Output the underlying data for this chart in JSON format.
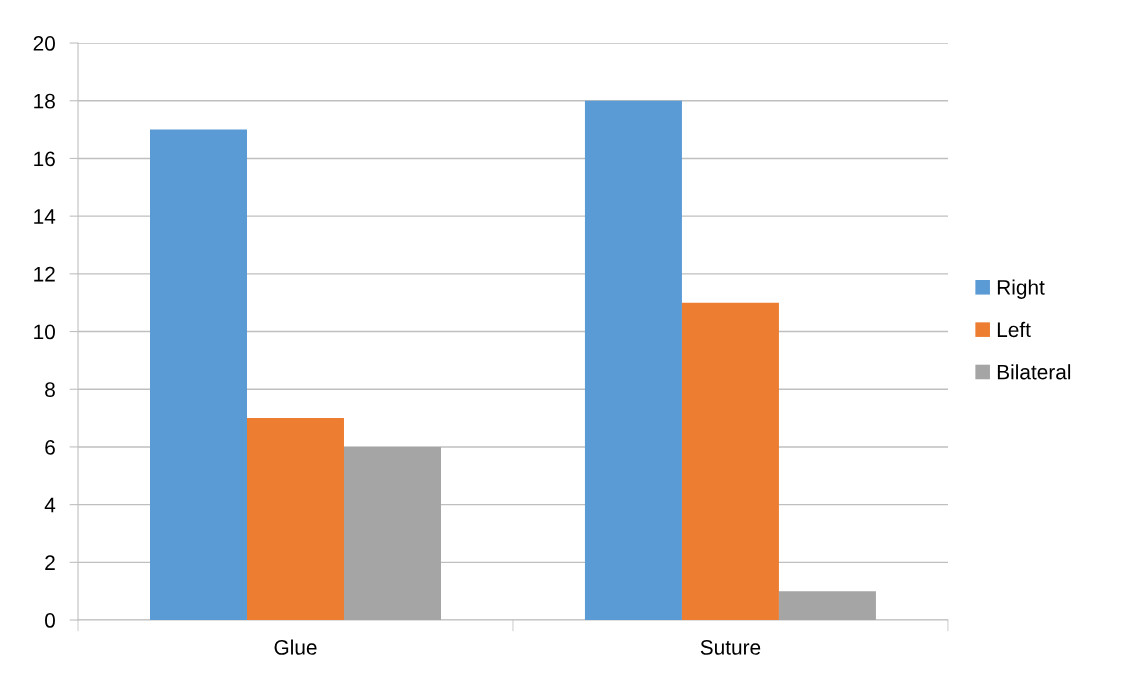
{
  "chart_data": {
    "type": "bar",
    "categories": [
      "Glue",
      "Suture"
    ],
    "series": [
      {
        "name": "Right",
        "color": "#5b9bd5",
        "values": [
          17,
          18
        ]
      },
      {
        "name": "Left",
        "color": "#ed7d31",
        "values": [
          7,
          11
        ]
      },
      {
        "name": "Bilateral",
        "color": "#a5a5a5",
        "values": [
          6,
          1
        ]
      }
    ],
    "ylim": [
      0,
      20
    ],
    "yticks": [
      0,
      2,
      4,
      6,
      8,
      10,
      12,
      14,
      16,
      18,
      20
    ],
    "grid": "y",
    "legend": "right"
  }
}
